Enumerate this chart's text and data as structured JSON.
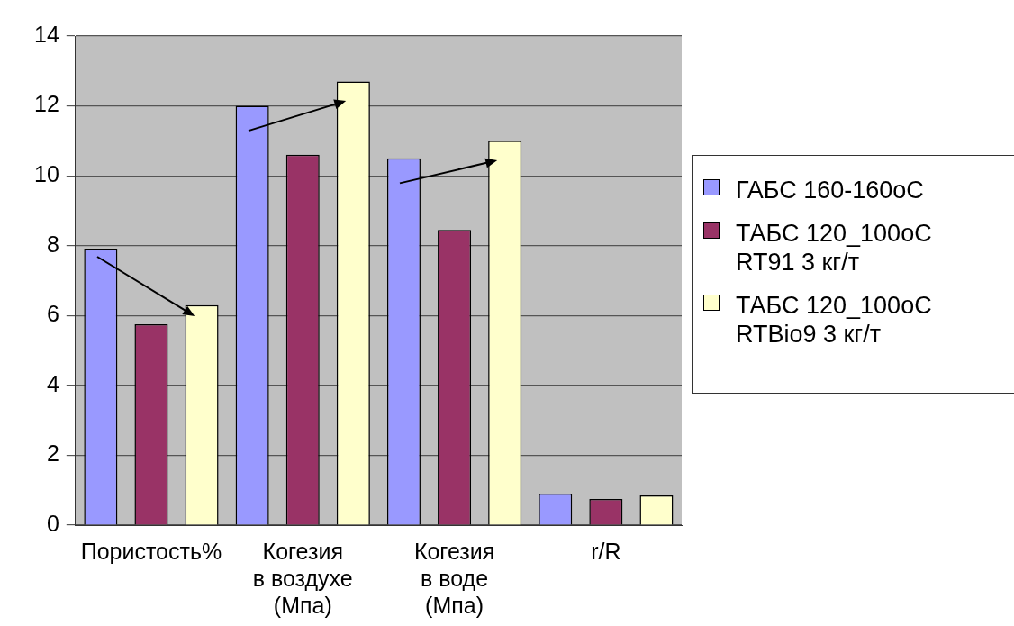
{
  "chart_data": {
    "type": "bar",
    "categories": [
      "Пористость%",
      "Когезия\nв воздухе\n(Мпа)",
      "Когезия\nв воде\n(Мпа)",
      "r/R"
    ],
    "series": [
      {
        "name": "ГАБС 160-160oC",
        "color": "#9999ff",
        "values": [
          7.9,
          12.0,
          10.5,
          0.9
        ]
      },
      {
        "name": "ТАБС 120_100oC RT91 3 кг/т",
        "color": "#993366",
        "values": [
          5.75,
          10.6,
          8.45,
          0.75
        ]
      },
      {
        "name": "ТАБС 120_100oC RTBio9 3 кг/т",
        "color": "#ffffcc",
        "values": [
          6.3,
          12.7,
          11.0,
          0.85
        ]
      }
    ],
    "ylim": [
      0,
      14
    ],
    "yticks": [
      0,
      2,
      4,
      6,
      8,
      10,
      12,
      14
    ],
    "grid": "y",
    "legend": "right"
  }
}
